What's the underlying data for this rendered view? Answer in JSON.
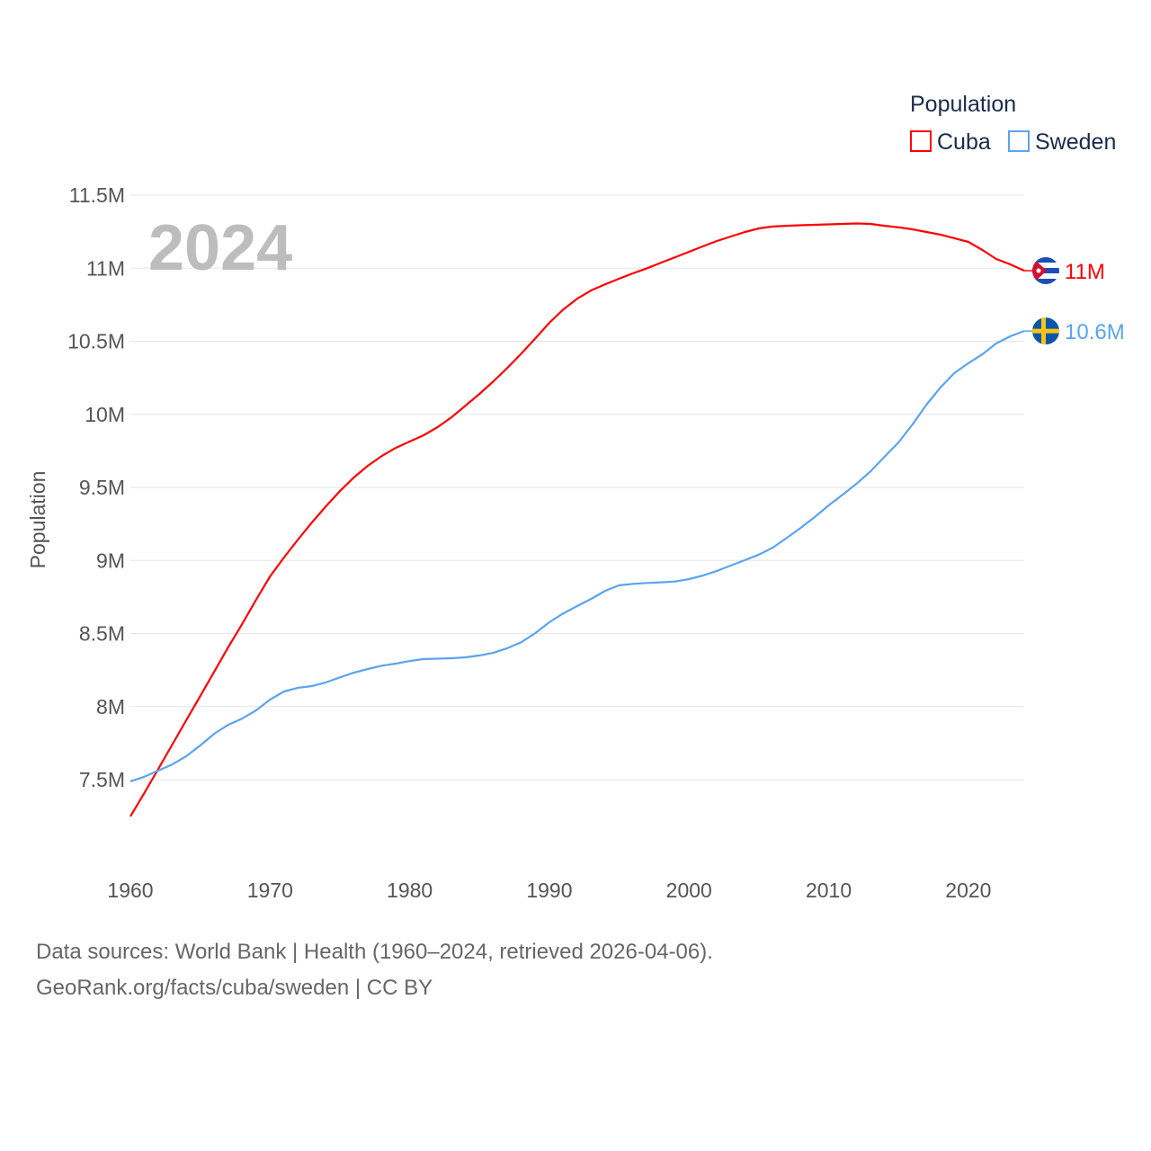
{
  "chart_data": {
    "type": "line",
    "title": "",
    "xlabel": "",
    "ylabel": "Population",
    "xlim": [
      1960,
      2024
    ],
    "ylim": [
      7.0,
      11.5
    ],
    "grid": true,
    "x_ticks": [
      "1960",
      "1970",
      "1980",
      "1990",
      "2000",
      "2010",
      "2020"
    ],
    "x_tick_values": [
      1960,
      1970,
      1980,
      1990,
      2000,
      2010,
      2020
    ],
    "y_ticks": [
      "7.5M",
      "8M",
      "8.5M",
      "9M",
      "9.5M",
      "10M",
      "10.5M",
      "11M",
      "11.5M"
    ],
    "y_tick_values": [
      7.5,
      8,
      8.5,
      9,
      9.5,
      10,
      10.5,
      11,
      11.5
    ],
    "year_label": "2024",
    "legend": {
      "title": "Population",
      "placement": "top-right"
    },
    "x": [
      1960,
      1961,
      1962,
      1963,
      1964,
      1965,
      1966,
      1967,
      1968,
      1969,
      1970,
      1971,
      1972,
      1973,
      1974,
      1975,
      1976,
      1977,
      1978,
      1979,
      1980,
      1981,
      1982,
      1983,
      1984,
      1985,
      1986,
      1987,
      1988,
      1989,
      1990,
      1991,
      1992,
      1993,
      1994,
      1995,
      1996,
      1997,
      1998,
      1999,
      2000,
      2001,
      2002,
      2003,
      2004,
      2005,
      2006,
      2007,
      2008,
      2009,
      2010,
      2011,
      2012,
      2013,
      2014,
      2015,
      2016,
      2017,
      2018,
      2019,
      2020,
      2021,
      2022,
      2023,
      2024
    ],
    "series": [
      {
        "name": "Cuba",
        "color": "#ff0000",
        "end_label": "11M",
        "flag": "cuba-flag",
        "values": [
          7.248,
          7.408,
          7.574,
          7.74,
          7.906,
          8.072,
          8.238,
          8.405,
          8.565,
          8.731,
          8.891,
          9.02,
          9.143,
          9.26,
          9.37,
          9.475,
          9.568,
          9.648,
          9.715,
          9.77,
          9.814,
          9.857,
          9.912,
          9.98,
          10.06,
          10.14,
          10.226,
          10.318,
          10.417,
          10.52,
          10.626,
          10.718,
          10.792,
          10.848,
          10.89,
          10.928,
          10.965,
          11.0,
          11.038,
          11.075,
          11.112,
          11.15,
          11.186,
          11.217,
          11.248,
          11.272,
          11.285,
          11.29,
          11.294,
          11.297,
          11.3,
          11.303,
          11.306,
          11.303,
          11.29,
          11.28,
          11.266,
          11.248,
          11.23,
          11.205,
          11.18,
          11.125,
          11.063,
          11.026,
          10.983
        ]
      },
      {
        "name": "Sweden",
        "color": "#5ba4ee",
        "end_label": "10.6M",
        "flag": "sweden-flag",
        "values": [
          7.488,
          7.52,
          7.562,
          7.604,
          7.66,
          7.734,
          7.814,
          7.875,
          7.918,
          7.974,
          8.048,
          8.103,
          8.128,
          8.14,
          8.165,
          8.2,
          8.232,
          8.257,
          8.28,
          8.294,
          8.312,
          8.325,
          8.328,
          8.331,
          8.337,
          8.35,
          8.368,
          8.4,
          8.441,
          8.503,
          8.577,
          8.638,
          8.688,
          8.737,
          8.792,
          8.83,
          8.84,
          8.846,
          8.85,
          8.856,
          8.872,
          8.897,
          8.928,
          8.965,
          9.002,
          9.04,
          9.088,
          9.155,
          9.223,
          9.297,
          9.377,
          9.45,
          9.525,
          9.61,
          9.71,
          9.808,
          9.931,
          10.066,
          10.183,
          10.282,
          10.35,
          10.41,
          10.485,
          10.534,
          10.57
        ]
      }
    ]
  },
  "footer": {
    "line1": "Data sources: World Bank | Health (1960–2024, retrieved 2026-04-06).",
    "line2": "GeoRank.org/facts/cuba/sweden | CC BY"
  }
}
